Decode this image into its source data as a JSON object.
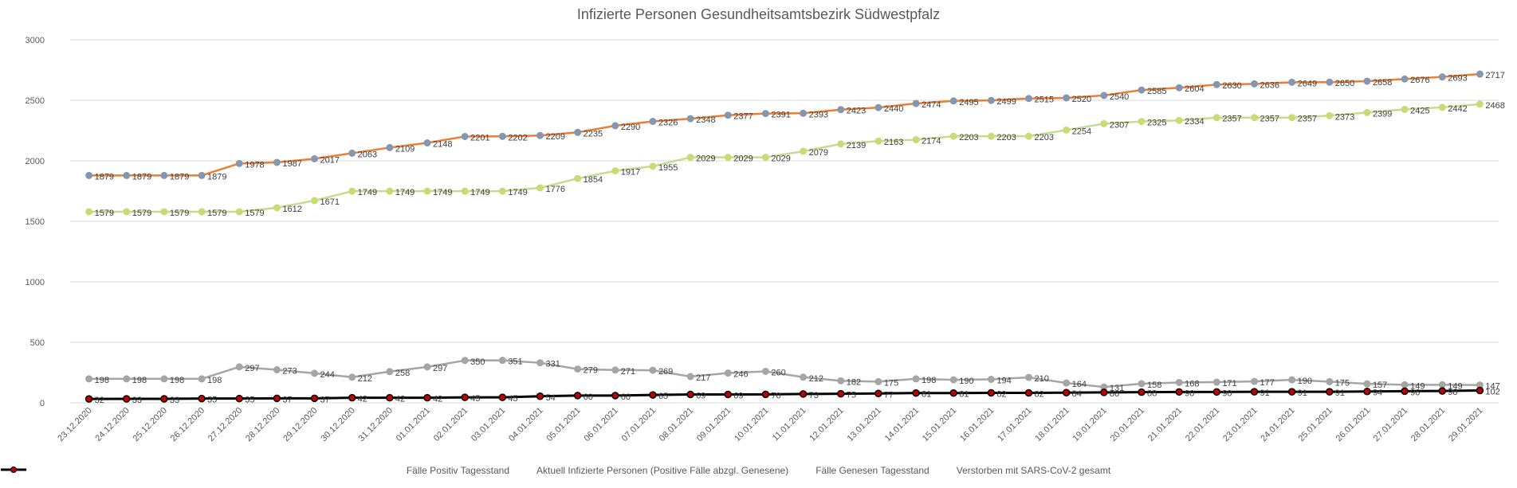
{
  "chart_data": {
    "type": "line",
    "title": "Infizierte Personen Gesundheitsamtsbezirk Südwestpfalz",
    "xlabel": "",
    "ylabel": "",
    "ylim": [
      0,
      3000
    ],
    "yticks": [
      "0",
      "500",
      "1000",
      "1500",
      "2000",
      "2500",
      "3000"
    ],
    "grid": true,
    "legend_position": "bottom",
    "categories": [
      "23.12.2020",
      "24.12.2020",
      "25.12.2020",
      "26.12.2020",
      "27.12.2020",
      "28.12.2020",
      "29.12.2020",
      "30.12.2020",
      "31.12.2020",
      "01.01.2021",
      "02.01.2021",
      "03.01.2021",
      "04.01.2021",
      "05.01.2021",
      "06.01.2021",
      "07.01.2021",
      "08.01.2021",
      "09.01.2021",
      "10.01.2021",
      "11.01.2021",
      "12.01.2021",
      "13.01.2021",
      "14.01.2021",
      "15.01.2021",
      "16.01.2021",
      "17.01.2021",
      "18.01.2021",
      "19.01.2021",
      "20.01.2021",
      "21.01.2021",
      "22.01.2021",
      "23.01.2021",
      "24.01.2021",
      "25.01.2021",
      "26.01.2021",
      "27.01.2021",
      "28.01.2021",
      "29.01.2021"
    ],
    "series": [
      {
        "name": "Fälle Positiv Tagesstand",
        "line_color": "#ED7D31",
        "marker_color": "#8497B0",
        "marker_stroke": "#8497B0",
        "values": [
          1879,
          1879,
          1879,
          1879,
          1978,
          1987,
          2017,
          2063,
          2109,
          2148,
          2201,
          2202,
          2209,
          2235,
          2290,
          2326,
          2348,
          2377,
          2391,
          2393,
          2423,
          2440,
          2474,
          2495,
          2499,
          2515,
          2520,
          2540,
          2585,
          2604,
          2630,
          2636,
          2649,
          2650,
          2658,
          2676,
          2693,
          2717
        ],
        "labels": [
          "1879",
          "1879",
          "1879",
          "1879",
          "1978",
          "1987",
          "2017",
          "2063",
          "2109",
          "2148",
          "2201",
          "2202",
          "2209",
          "2235",
          "2290",
          "2326",
          "2348",
          "2377",
          "2391",
          "2393",
          "2423",
          "2440",
          "2474",
          "2495",
          "2499",
          "2515",
          "2520",
          "2540",
          "2585",
          "2604",
          "2630",
          "2636",
          "2649",
          "2650",
          "2658",
          "2676",
          "2693",
          "2717"
        ]
      },
      {
        "name": "Aktuell Infizierte Personen (Positive Fälle abzgl. Genesene)",
        "line_color": "#A5A5A5",
        "marker_color": "#A5A5A5",
        "marker_stroke": "#A5A5A5",
        "values": [
          198,
          198,
          198,
          198,
          297,
          273,
          244,
          212,
          258,
          297,
          350,
          351,
          331,
          279,
          271,
          269,
          217,
          246,
          260,
          212,
          182,
          175,
          198,
          190,
          194,
          210,
          164,
          131,
          158,
          168,
          171,
          177,
          190,
          175,
          157,
          149,
          149,
          147
        ],
        "labels": [
          "198",
          "198",
          "198",
          "198",
          "297",
          "273",
          "244",
          "212",
          "258",
          "297",
          "350",
          "351",
          "331",
          "279",
          "271",
          "269",
          "217",
          "246",
          "260",
          "212",
          "182",
          "175",
          "198",
          "190",
          "194",
          "210",
          "164",
          "131",
          "158",
          "168",
          "171",
          "177",
          "190",
          "175",
          "157",
          "149",
          "149",
          "147"
        ]
      },
      {
        "name": "Fälle Genesen Tagesstand",
        "line_color": "#C5DC8F",
        "marker_color": "#C9DB75",
        "marker_stroke": "#C9DB75",
        "values": [
          1579,
          1579,
          1579,
          1579,
          1579,
          1612,
          1671,
          1749,
          1749,
          1749,
          1749,
          1749,
          1776,
          1854,
          1917,
          1955,
          2029,
          2029,
          2029,
          2079,
          2139,
          2163,
          2174,
          2203,
          2203,
          2203,
          2254,
          2307,
          2325,
          2334,
          2357,
          2357,
          2357,
          2373,
          2399,
          2425,
          2442,
          2468
        ],
        "labels": [
          "1579",
          "1579",
          "1579",
          "1579",
          "1579",
          "1612",
          "1671",
          "1749",
          "1749",
          "1749",
          "1749",
          "1749",
          "1776",
          "1854",
          "1917",
          "1955",
          "2029",
          "2029",
          "2029",
          "2079",
          "2139",
          "2163",
          "2174",
          "2203",
          "2203",
          "2203",
          "2254",
          "2307",
          "2325",
          "2334",
          "2357",
          "2357",
          "2357",
          "2373",
          "2399",
          "2425",
          "2442",
          "2468"
        ]
      },
      {
        "name": "Verstorben mit SARS-CoV-2 gesamt",
        "line_color": "#000000",
        "marker_color": "#C00000",
        "marker_stroke": "#000000",
        "values": [
          32,
          33,
          33,
          35,
          35,
          37,
          37,
          42,
          42,
          42,
          45,
          45,
          54,
          60,
          60,
          65,
          69,
          69,
          70,
          73,
          75,
          77,
          81,
          81,
          82,
          82,
          84,
          86,
          88,
          90,
          90,
          91,
          91,
          91,
          94,
          96,
          98,
          102
        ],
        "labels": [
          "32",
          "33",
          "33",
          "35",
          "35",
          "37",
          "37",
          "42",
          "42",
          "42",
          "45",
          "45",
          "54",
          "60",
          "60",
          "65",
          "69",
          "69",
          "70",
          "73",
          "75",
          "77",
          "81",
          "81",
          "82",
          "82",
          "84",
          "86",
          "88",
          "90",
          "90",
          "91",
          "91",
          "91",
          "94",
          "96",
          "98",
          "102"
        ]
      }
    ]
  }
}
